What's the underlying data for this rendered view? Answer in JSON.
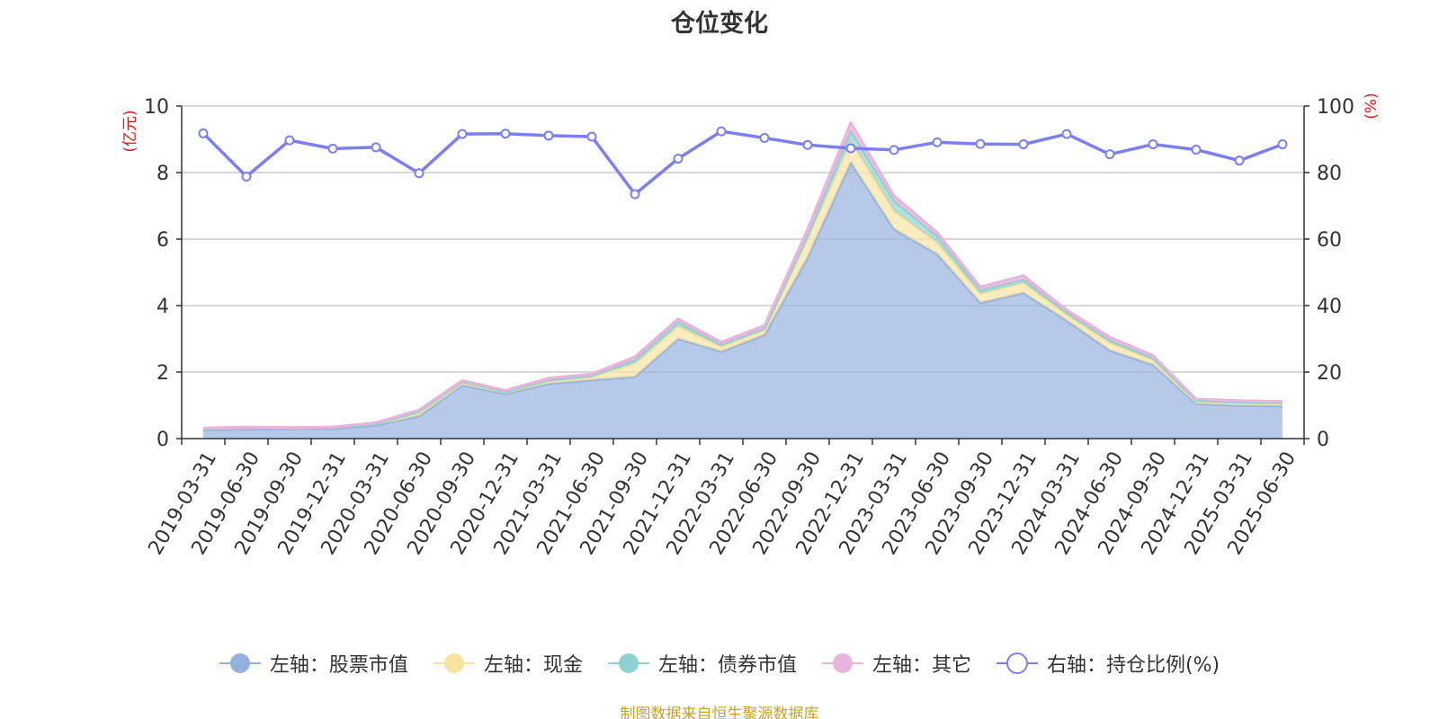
{
  "chart_title": "仓位变化",
  "source_note": "制图数据来自恒生聚源数据库",
  "axis_labels": {
    "left_unit": "(亿元)",
    "right_unit": "(%)"
  },
  "legend": [
    {
      "label": "左轴：股票市值",
      "color": "#93b0de",
      "icon": "filled-circle"
    },
    {
      "label": "左轴：现金",
      "color": "#f7e3a0",
      "icon": "filled-circle"
    },
    {
      "label": "左轴：债券市值",
      "color": "#8fd1d1",
      "icon": "filled-circle"
    },
    {
      "label": "左轴：其它",
      "color": "#e8b4dc",
      "icon": "filled-circle"
    },
    {
      "label": "右轴：持仓比例(%)",
      "color": "#7b7ff2",
      "icon": "hollow-circle"
    }
  ],
  "chart_data": {
    "type": "area",
    "title": "仓位变化",
    "x": [
      "2019-03-31",
      "2019-06-30",
      "2019-09-30",
      "2019-12-31",
      "2020-03-31",
      "2020-06-30",
      "2020-09-30",
      "2020-12-31",
      "2021-03-31",
      "2021-06-30",
      "2021-09-30",
      "2021-12-31",
      "2022-03-31",
      "2022-06-30",
      "2022-09-30",
      "2022-12-31",
      "2023-03-31",
      "2023-06-30",
      "2023-09-30",
      "2023-12-31",
      "2024-03-31",
      "2024-06-30",
      "2024-09-30",
      "2024-12-31",
      "2025-03-31",
      "2025-06-30"
    ],
    "left_axis": {
      "label": "(亿元)",
      "ylim": [
        0,
        10
      ],
      "ticks": [
        0,
        2,
        4,
        6,
        8,
        10
      ]
    },
    "right_axis": {
      "label": "(%)",
      "ylim": [
        0,
        100
      ],
      "ticks": [
        0,
        20,
        40,
        60,
        80,
        100
      ]
    },
    "grid": true,
    "legend_position": "bottom",
    "stacked_series": [
      {
        "name": "左轴：股票市值",
        "axis": "left",
        "color": "#93b0de",
        "values": [
          0.26,
          0.28,
          0.29,
          0.3,
          0.4,
          0.68,
          1.61,
          1.35,
          1.65,
          1.76,
          1.86,
          3.0,
          2.62,
          3.12,
          5.45,
          8.3,
          6.3,
          5.55,
          4.08,
          4.38,
          3.55,
          2.65,
          2.22,
          1.05,
          1.0,
          0.98
        ]
      },
      {
        "name": "左轴：现金",
        "axis": "left",
        "color": "#f7e3a0",
        "values": [
          0.03,
          0.03,
          0.02,
          0.03,
          0.04,
          0.09,
          0.08,
          0.06,
          0.09,
          0.1,
          0.4,
          0.38,
          0.15,
          0.14,
          0.55,
          0.65,
          0.55,
          0.35,
          0.28,
          0.3,
          0.18,
          0.24,
          0.14,
          0.06,
          0.06,
          0.06
        ]
      },
      {
        "name": "左轴：债券市值",
        "axis": "left",
        "color": "#8fd1d1",
        "values": [
          0.0,
          0.0,
          0.0,
          0.0,
          0.0,
          0.04,
          0.02,
          0.0,
          0.02,
          0.02,
          0.1,
          0.12,
          0.05,
          0.05,
          0.1,
          0.3,
          0.3,
          0.18,
          0.1,
          0.1,
          0.06,
          0.06,
          0.06,
          0.03,
          0.03,
          0.03
        ]
      },
      {
        "name": "左轴：其它",
        "axis": "left",
        "color": "#e8b4dc",
        "values": [
          0.03,
          0.04,
          0.02,
          0.02,
          0.04,
          0.05,
          0.04,
          0.04,
          0.06,
          0.06,
          0.1,
          0.1,
          0.08,
          0.09,
          0.2,
          0.25,
          0.15,
          0.12,
          0.1,
          0.12,
          0.08,
          0.1,
          0.08,
          0.05,
          0.05,
          0.05
        ]
      }
    ],
    "line_series": {
      "name": "右轴：持仓比例(%)",
      "axis": "right",
      "color": "#7b7ff2",
      "values": [
        91.8,
        78.8,
        89.7,
        87.2,
        87.6,
        79.8,
        91.6,
        91.7,
        91.1,
        90.8,
        73.5,
        84.2,
        92.4,
        90.4,
        88.3,
        87.3,
        86.8,
        89.1,
        88.6,
        88.5,
        91.6,
        85.5,
        88.5,
        86.9,
        83.6,
        88.5
      ]
    }
  }
}
